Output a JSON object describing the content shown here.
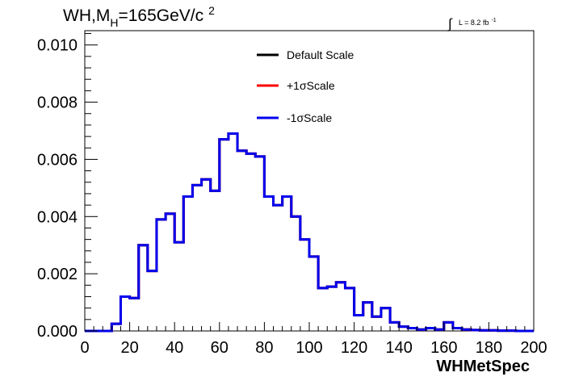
{
  "chart_data": {
    "type": "line",
    "title": {
      "main": "WH,M",
      "sub": "H",
      "rest": "=165GeV/c",
      "sup": "2"
    },
    "luminosity": {
      "integral": "∫",
      "label": "L = 8.2 fb",
      "sup": "-1"
    },
    "xlabel": "WHMetSpec",
    "ylabel": "",
    "xlim": [
      0,
      200
    ],
    "ylim": [
      0,
      0.0105
    ],
    "x_ticks": [
      "0",
      "20",
      "40",
      "60",
      "80",
      "100",
      "120",
      "140",
      "160",
      "180",
      "200"
    ],
    "y_ticks": [
      "0.000",
      "0.002",
      "0.004",
      "0.006",
      "0.008",
      "0.010"
    ],
    "bin_width": 4,
    "legend_position": "top-center",
    "series": [
      {
        "name": "Default Scale",
        "color": "#000000",
        "values": [
          0,
          0,
          0,
          0.00025,
          0.0012,
          0.00115,
          0.003,
          0.0021,
          0.0039,
          0.0041,
          0.0031,
          0.0047,
          0.0051,
          0.0053,
          0.0049,
          0.0067,
          0.0069,
          0.0063,
          0.0062,
          0.0061,
          0.0047,
          0.0044,
          0.0047,
          0.004,
          0.0032,
          0.0026,
          0.0015,
          0.00155,
          0.0017,
          0.0015,
          0.00055,
          0.001,
          0.0005,
          0.0008,
          0.0003,
          0.00015,
          0.0001,
          5e-05,
          0.0001,
          5e-05,
          0.0003,
          0.0001,
          5e-05,
          3e-05,
          2e-05,
          2e-05,
          1e-05,
          1e-05,
          0,
          0
        ]
      },
      {
        "name": "+1σScale",
        "color": "#ff0000",
        "values": [
          0,
          0,
          0,
          0.00025,
          0.0012,
          0.00115,
          0.003,
          0.0021,
          0.0039,
          0.0041,
          0.0031,
          0.0047,
          0.0051,
          0.0053,
          0.0049,
          0.0067,
          0.0069,
          0.0063,
          0.0062,
          0.0061,
          0.0047,
          0.0044,
          0.0047,
          0.004,
          0.0032,
          0.0026,
          0.0015,
          0.00155,
          0.0017,
          0.0015,
          0.00055,
          0.001,
          0.0005,
          0.0008,
          0.0003,
          0.00015,
          0.0001,
          5e-05,
          0.0001,
          5e-05,
          0.0003,
          0.0001,
          5e-05,
          3e-05,
          2e-05,
          2e-05,
          1e-05,
          1e-05,
          0,
          0
        ]
      },
      {
        "name": "-1σScale",
        "color": "#0000ee",
        "values": [
          0,
          0,
          0,
          0.00025,
          0.0012,
          0.00115,
          0.003,
          0.0021,
          0.0039,
          0.0041,
          0.0031,
          0.0047,
          0.0051,
          0.0053,
          0.0049,
          0.0067,
          0.0069,
          0.0063,
          0.0062,
          0.0061,
          0.0047,
          0.0044,
          0.0047,
          0.004,
          0.0032,
          0.0026,
          0.0015,
          0.00155,
          0.0017,
          0.0015,
          0.00055,
          0.001,
          0.0005,
          0.0008,
          0.0003,
          0.00015,
          0.0001,
          5e-05,
          0.0001,
          5e-05,
          0.0003,
          0.0001,
          5e-05,
          3e-05,
          2e-05,
          2e-05,
          1e-05,
          1e-05,
          0,
          0
        ]
      }
    ]
  }
}
